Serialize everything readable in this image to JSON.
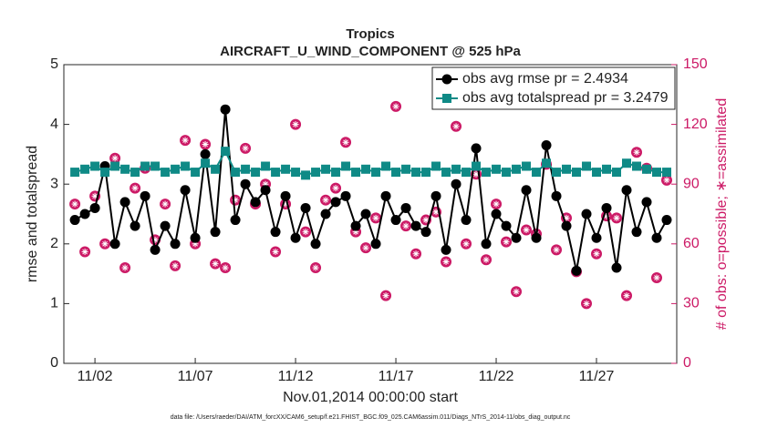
{
  "chart_data": {
    "type": "line",
    "title": "Tropics",
    "subtitle": "AIRCRAFT_U_WIND_COMPONENT @ 525 hPa",
    "xlabel": "Nov.01,2014 00:00:00 start",
    "ylabel": "rmse and totalspread",
    "y2label": "# of obs: o=possible; ∗=assimilated",
    "footnote": "data file: /Users/raeder/DAI/ATM_forcXX/CAM6_setup/f.e21.FHIST_BGC.f09_025.CAM6assim.011/Diags_NTrS_2014-11/obs_diag_output.nc",
    "legend": "upper right",
    "xlim": [
      -0.55,
      30.0
    ],
    "xticks": [
      {
        "value": 1,
        "label": "11/02"
      },
      {
        "value": 6,
        "label": "11/07"
      },
      {
        "value": 11,
        "label": "11/12"
      },
      {
        "value": 16,
        "label": "11/17"
      },
      {
        "value": 21,
        "label": "11/22"
      },
      {
        "value": 26,
        "label": "11/27"
      }
    ],
    "ylim": [
      0,
      5
    ],
    "yticks": [
      0,
      1,
      2,
      3,
      4,
      5
    ],
    "y2lim": [
      0,
      150
    ],
    "y2ticks": [
      0,
      30,
      60,
      90,
      120,
      150
    ],
    "y2color": "#cc1a66",
    "x": [
      0,
      0.5,
      1,
      1.5,
      2,
      2.5,
      3,
      3.5,
      4,
      4.5,
      5,
      5.5,
      6,
      6.5,
      7,
      7.5,
      8,
      8.5,
      9,
      9.5,
      10,
      10.5,
      11,
      11.5,
      12,
      12.5,
      13,
      13.5,
      14,
      14.5,
      15,
      15.5,
      16,
      16.5,
      17,
      17.5,
      18,
      18.5,
      19,
      19.5,
      20,
      20.5,
      21,
      21.5,
      22,
      22.5,
      23,
      23.5,
      24,
      24.5,
      25,
      25.5,
      26,
      26.5,
      27,
      27.5,
      28,
      28.5,
      29,
      29.5
    ],
    "series": [
      {
        "name": "obs avg rmse pr = 2.4934",
        "color": "#000000",
        "marker": "circle",
        "values": [
          2.4,
          2.5,
          2.6,
          3.3,
          2.0,
          2.7,
          2.3,
          2.8,
          1.9,
          2.3,
          2.0,
          2.9,
          2.1,
          3.5,
          2.2,
          4.25,
          2.4,
          3.0,
          2.7,
          2.9,
          2.2,
          2.8,
          2.1,
          2.6,
          2.0,
          2.5,
          2.7,
          2.8,
          2.3,
          2.5,
          2.0,
          2.8,
          2.4,
          2.6,
          2.3,
          2.2,
          2.8,
          1.9,
          3.0,
          2.4,
          3.6,
          2.0,
          2.5,
          2.3,
          2.1,
          2.9,
          2.1,
          3.65,
          2.8,
          2.3,
          1.55,
          2.5,
          2.1,
          2.6,
          1.6,
          2.9,
          2.2,
          2.7,
          2.1,
          2.4
        ]
      },
      {
        "name": "obs avg totalspread pr = 3.2479",
        "color": "#0f8a86",
        "marker": "square",
        "values": [
          3.2,
          3.25,
          3.3,
          3.2,
          3.3,
          3.25,
          3.2,
          3.3,
          3.3,
          3.2,
          3.25,
          3.3,
          3.2,
          3.35,
          3.25,
          3.55,
          3.2,
          3.25,
          3.2,
          3.3,
          3.2,
          3.25,
          3.2,
          3.15,
          3.2,
          3.25,
          3.2,
          3.3,
          3.2,
          3.25,
          3.2,
          3.3,
          3.2,
          3.25,
          3.2,
          3.2,
          3.3,
          3.2,
          3.25,
          3.2,
          3.3,
          3.2,
          3.25,
          3.2,
          3.25,
          3.3,
          3.2,
          3.35,
          3.2,
          3.25,
          3.2,
          3.3,
          3.2,
          3.25,
          3.2,
          3.35,
          3.3,
          3.25,
          3.2,
          3.2
        ]
      }
    ],
    "obs_count": {
      "axis": "y2",
      "color": "#cc1a66",
      "values": [
        80,
        56,
        84,
        60,
        103,
        48,
        88,
        98,
        62,
        80,
        49,
        112,
        60,
        110,
        50,
        48,
        82,
        108,
        80,
        90,
        56,
        80,
        120,
        66,
        48,
        82,
        88,
        111,
        66,
        58,
        73,
        34,
        129,
        69,
        55,
        72,
        76,
        51,
        119,
        60,
        95,
        52,
        80,
        61,
        36,
        67,
        65,
        100,
        57,
        73,
        46,
        30,
        55,
        74,
        73,
        34,
        106,
        98,
        43,
        92
      ]
    }
  }
}
